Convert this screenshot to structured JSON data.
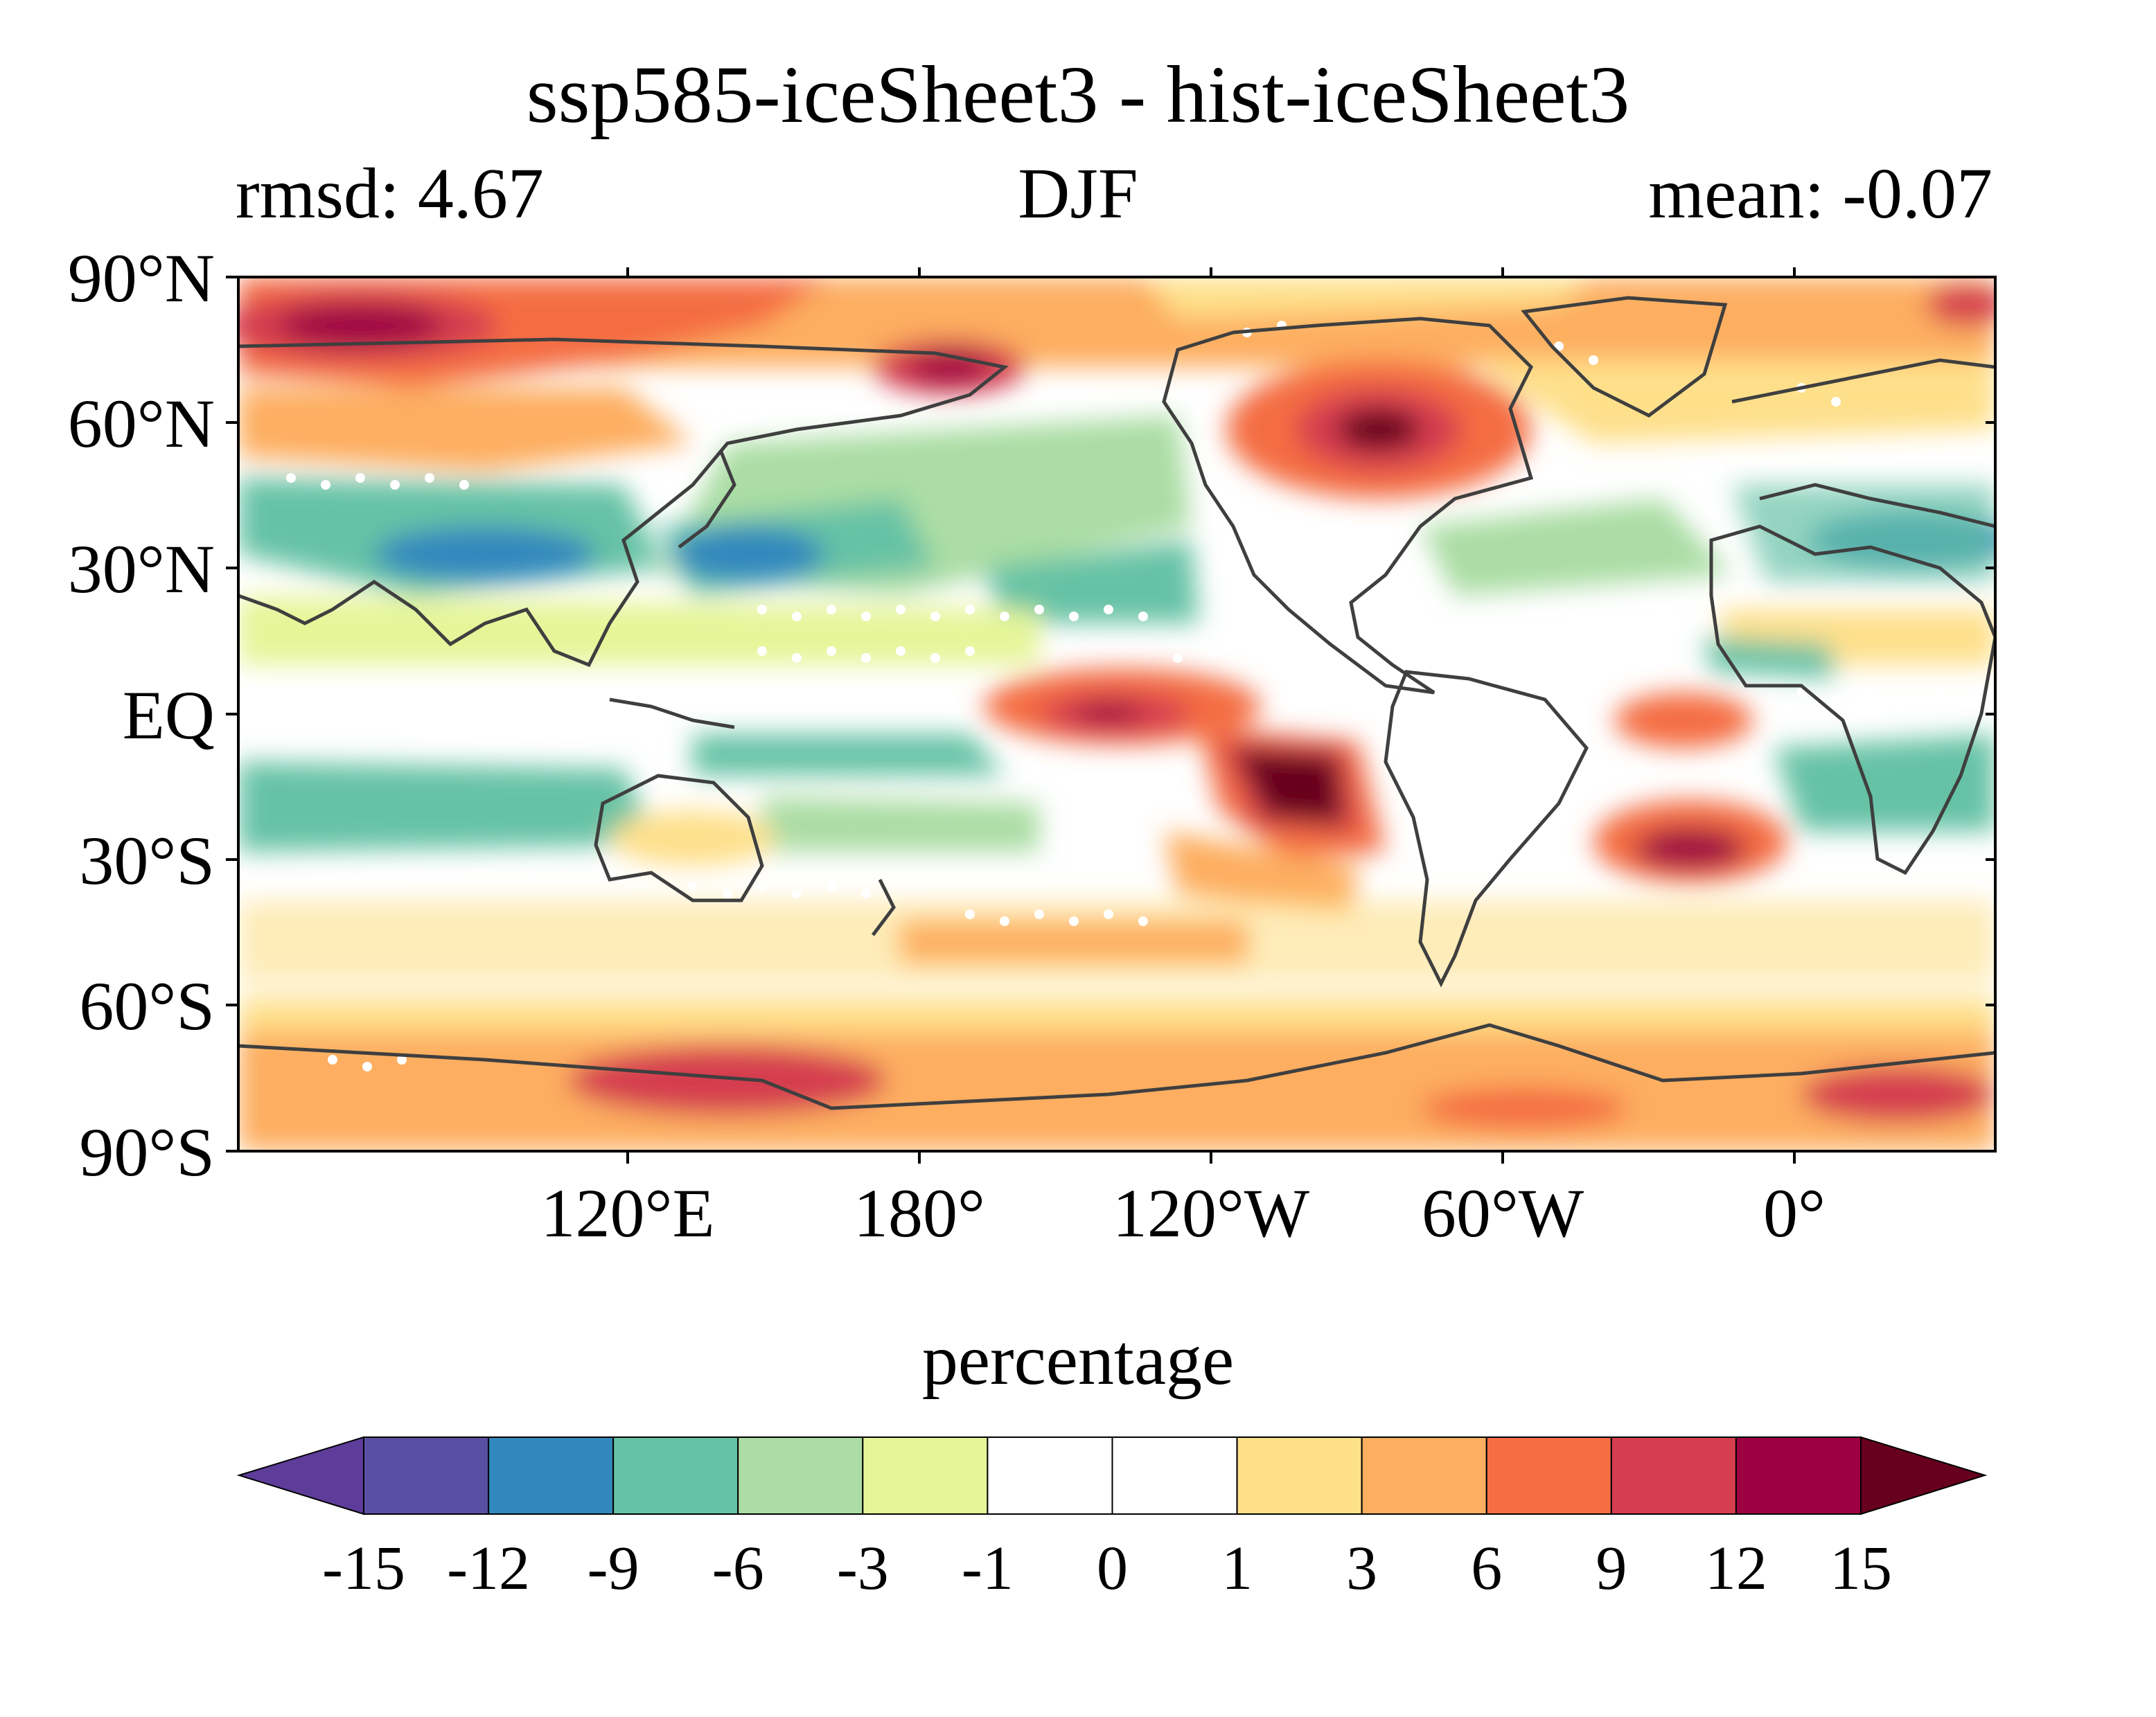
{
  "title": "ssp585-iceSheet3 - hist-iceSheet3",
  "subtitle_left": "rmsd: 4.67",
  "subtitle_center": "DJF",
  "subtitle_right": "mean: -0.07",
  "lat_labels": [
    "90°N",
    "60°N",
    "30°N",
    "EQ",
    "30°S",
    "60°S",
    "90°S"
  ],
  "lon_labels": [
    "120°E",
    "180°",
    "120°W",
    "60°W",
    "0°"
  ],
  "colorbar": {
    "title": "percentage",
    "tick_labels": [
      "-15",
      "-12",
      "-9",
      "-6",
      "-3",
      "-1",
      "0",
      "1",
      "3",
      "6",
      "9",
      "12",
      "15"
    ],
    "colors": [
      "#5e3c99",
      "#5b4fa3",
      "#3288bd",
      "#66c2a5",
      "#abdda4",
      "#e6f598",
      "#ffffff",
      "#ffffff",
      "#fee08b",
      "#fdae61",
      "#f46d43",
      "#d53e4f",
      "#9e0142",
      "#67001f"
    ]
  },
  "chart_data": {
    "type": "heatmap",
    "title": "ssp585-iceSheet3 - hist-iceSheet3",
    "season": "DJF",
    "rmsd": 4.67,
    "mean": -0.07,
    "units": "percentage",
    "levels": [
      -15,
      -12,
      -9,
      -6,
      -3,
      -1,
      0,
      1,
      3,
      6,
      9,
      12,
      15
    ],
    "extend": "both",
    "lon_ticks": [
      "120°E",
      "180°",
      "120°W",
      "60°W",
      "0°"
    ],
    "lat_ticks": [
      "90°N",
      "60°N",
      "30°N",
      "EQ",
      "30°S",
      "60°S",
      "90°S"
    ],
    "features": [
      {
        "region": "Siberia / high Arctic 60-80°E",
        "value": 15
      },
      {
        "region": "Eastern Siberia 170°E 70°N",
        "value": 12
      },
      {
        "region": "Hudson Bay / Labrador",
        "value": 15
      },
      {
        "region": "Eastern tropical Pacific 5°N",
        "value": 12
      },
      {
        "region": "Southeast Pacific off South America 20°S",
        "value": 15
      },
      {
        "region": "South Atlantic 30°S",
        "value": 12
      },
      {
        "region": "North Pacific 30-40°N",
        "value": -9
      },
      {
        "region": "Mediterranean",
        "value": -9
      },
      {
        "region": "Southern Ocean 60-70°S",
        "value": 6
      }
    ],
    "stippling": "white dots mark non-significant regions"
  }
}
